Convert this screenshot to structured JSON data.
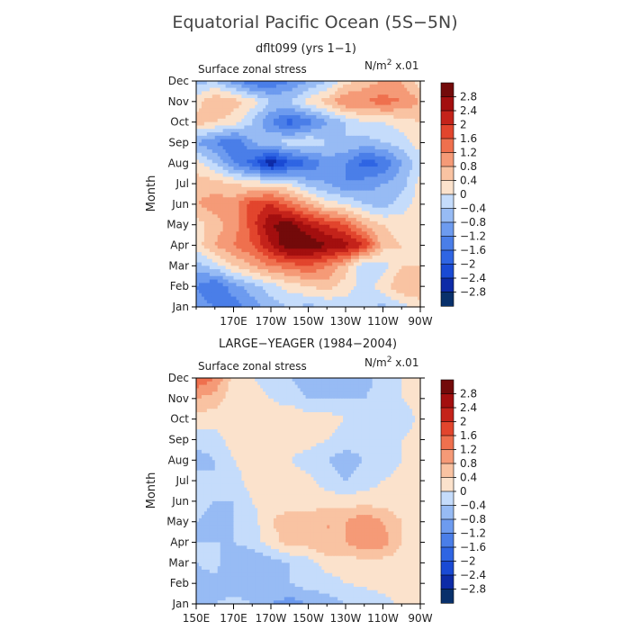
{
  "page": {
    "title": "Equatorial Pacific Ocean (5S−5N)"
  },
  "chart_data": [
    {
      "type": "heatmap",
      "title": "dflt099 (yrs 1−1)",
      "field_label": "Surface zonal stress",
      "units": "N/m² x.01",
      "xlabel": "",
      "ylabel": "Month",
      "x_tick_labels": [
        "170E",
        "170W",
        "150W",
        "130W",
        "110W",
        "90W"
      ],
      "y_tick_labels": [
        "Jan",
        "Feb",
        "Mar",
        "Apr",
        "May",
        "Jun",
        "Jul",
        "Aug",
        "Sep",
        "Oct",
        "Nov",
        "Dec"
      ],
      "x_range": [
        "150E",
        "90W"
      ],
      "y_range": [
        "Jan",
        "Dec"
      ],
      "longitudes": [
        150,
        160,
        170,
        180,
        190,
        200,
        210,
        220,
        230,
        240,
        250,
        260,
        270
      ],
      "months": [
        "Jan",
        "Feb",
        "Mar",
        "Apr",
        "May",
        "Jun",
        "Jul",
        "Aug",
        "Sep",
        "Oct",
        "Nov",
        "Dec"
      ],
      "values": [
        [
          -1.0,
          -1.2,
          -1.4,
          -1.0,
          -0.6,
          -0.4,
          -0.5,
          -0.4,
          -0.2,
          -0.3,
          -0.5,
          -0.2,
          0.2
        ],
        [
          -1.2,
          -1.6,
          -1.0,
          -0.6,
          -0.2,
          0.2,
          0.4,
          0.6,
          0.2,
          -0.2,
          0.2,
          0.8,
          0.8
        ],
        [
          -0.6,
          -0.2,
          0.4,
          0.8,
          1.2,
          1.4,
          1.6,
          1.2,
          0.6,
          -0.4,
          -0.2,
          0.4,
          0.4
        ],
        [
          0.2,
          0.8,
          1.2,
          1.6,
          2.4,
          3.2,
          3.2,
          2.8,
          2.6,
          2.0,
          0.6,
          0.4,
          0.3
        ],
        [
          0.2,
          0.6,
          1.0,
          1.8,
          2.8,
          3.0,
          2.4,
          2.0,
          1.6,
          0.8,
          0.4,
          0.2,
          0.2
        ],
        [
          0.8,
          1.0,
          1.0,
          1.8,
          2.0,
          1.4,
          0.8,
          0.2,
          0.0,
          -0.4,
          -0.6,
          -0.2,
          0.2
        ],
        [
          0.6,
          0.6,
          0.4,
          0.2,
          0.2,
          0.0,
          -0.6,
          -0.8,
          -1.2,
          -1.0,
          -0.8,
          -0.6,
          0.2
        ],
        [
          0.2,
          -0.4,
          -1.2,
          -1.8,
          -2.8,
          -2.0,
          -1.6,
          -1.0,
          -1.2,
          -1.8,
          -1.6,
          -0.8,
          -0.2
        ],
        [
          -0.8,
          -1.2,
          -1.6,
          -0.8,
          -0.4,
          -0.2,
          0.0,
          -0.4,
          -0.4,
          -0.6,
          -0.4,
          -0.2,
          0.2
        ],
        [
          0.6,
          0.4,
          0.2,
          -0.4,
          -1.2,
          -1.8,
          -1.4,
          -0.8,
          -0.4,
          0.0,
          0.0,
          0.2,
          0.4
        ],
        [
          0.2,
          0.8,
          0.6,
          0.2,
          -0.4,
          -0.4,
          0.2,
          0.6,
          1.2,
          1.2,
          1.4,
          1.2,
          0.8
        ],
        [
          -0.6,
          -0.4,
          -1.0,
          -1.6,
          -1.6,
          -1.2,
          -0.8,
          -0.4,
          0.2,
          0.6,
          0.8,
          0.8,
          0.2
        ]
      ],
      "levels": [
        -2.8,
        -2.4,
        -2.0,
        -1.6,
        -1.2,
        -0.8,
        -0.4,
        0,
        0.4,
        0.8,
        1.2,
        1.6,
        2.0,
        2.4,
        2.8
      ],
      "colorbar_labels": [
        "2.8",
        "2.4",
        "2",
        "1.6",
        "1.2",
        "0.8",
        "0.4",
        "0",
        "−0.4",
        "−0.8",
        "−1.2",
        "−1.6",
        "−2",
        "−2.4",
        "−2.8"
      ],
      "colors": [
        "#08306b",
        "#0d2ba7",
        "#1a4ad4",
        "#2f65e3",
        "#4a7ee8",
        "#6d9bef",
        "#97bbf4",
        "#c5dcfb",
        "#fbe2cc",
        "#f9c3a2",
        "#f59a77",
        "#ef704e",
        "#e2452d",
        "#c4231a",
        "#a30f0f",
        "#730a0a"
      ]
    },
    {
      "type": "heatmap",
      "title": "LARGE−YEAGER (1984−2004)",
      "field_label": "Surface zonal stress",
      "units": "N/m² x.01",
      "xlabel": "",
      "ylabel": "Month",
      "x_tick_labels": [
        "150E",
        "170E",
        "170W",
        "150W",
        "130W",
        "110W",
        "90W"
      ],
      "y_tick_labels": [
        "Jan",
        "Feb",
        "Mar",
        "Apr",
        "May",
        "Jun",
        "Jul",
        "Aug",
        "Sep",
        "Oct",
        "Nov",
        "Dec"
      ],
      "x_range": [
        "150E",
        "90W"
      ],
      "y_range": [
        "Jan",
        "Dec"
      ],
      "longitudes": [
        150,
        160,
        170,
        180,
        190,
        200,
        210,
        220,
        230,
        240,
        250,
        260,
        270
      ],
      "months": [
        "Jan",
        "Feb",
        "Mar",
        "Apr",
        "May",
        "Jun",
        "Jul",
        "Aug",
        "Sep",
        "Oct",
        "Nov",
        "Dec"
      ],
      "values": [
        [
          -0.6,
          -0.4,
          -0.2,
          -0.4,
          -0.8,
          -1.0,
          -0.8,
          -0.6,
          -0.4,
          -0.4,
          -0.2,
          0.1,
          0.2
        ],
        [
          -0.6,
          -0.6,
          -0.8,
          -0.6,
          -0.4,
          -0.4,
          -0.2,
          -0.2,
          0.0,
          0.1,
          0.2,
          0.2,
          0.2
        ],
        [
          -0.4,
          -0.2,
          -0.8,
          -0.8,
          -0.6,
          -0.4,
          -0.2,
          0.2,
          0.2,
          0.2,
          0.2,
          0.2,
          0.2
        ],
        [
          -0.4,
          -0.4,
          -0.4,
          -0.2,
          0.2,
          0.6,
          0.6,
          0.8,
          0.8,
          1.2,
          1.0,
          0.4,
          0.2
        ],
        [
          -0.4,
          -0.6,
          -0.4,
          -0.2,
          0.4,
          0.6,
          0.6,
          0.8,
          0.8,
          1.2,
          0.8,
          0.4,
          0.2
        ],
        [
          -0.2,
          -0.4,
          -0.4,
          0.0,
          0.2,
          0.2,
          0.2,
          0.2,
          0.2,
          0.2,
          0.2,
          0.1,
          0.1
        ],
        [
          -0.2,
          -0.4,
          -0.2,
          0.2,
          0.2,
          0.2,
          0.1,
          -0.2,
          -0.4,
          -0.2,
          0.0,
          0.1,
          0.1
        ],
        [
          -0.6,
          -0.4,
          0.0,
          0.2,
          0.2,
          0.0,
          -0.2,
          -0.4,
          -0.6,
          -0.4,
          -0.2,
          0.0,
          0.1
        ],
        [
          -0.2,
          -0.2,
          0.2,
          0.2,
          0.2,
          0.2,
          0.2,
          0.0,
          -0.2,
          -0.2,
          -0.2,
          0.0,
          0.1
        ],
        [
          0.2,
          0.2,
          0.2,
          0.2,
          0.2,
          0.4,
          0.2,
          0.2,
          0.0,
          -0.2,
          -0.2,
          -0.2,
          0.1
        ],
        [
          0.8,
          0.6,
          0.2,
          0.2,
          0.0,
          -0.2,
          -0.4,
          -0.4,
          -0.4,
          -0.4,
          -0.2,
          0.0,
          0.1
        ],
        [
          1.6,
          1.2,
          0.2,
          0.0,
          -0.2,
          -0.4,
          -0.6,
          -0.8,
          -0.8,
          -0.6,
          -0.2,
          0.0,
          0.1
        ]
      ],
      "levels": [
        -2.8,
        -2.4,
        -2.0,
        -1.6,
        -1.2,
        -0.8,
        -0.4,
        0,
        0.4,
        0.8,
        1.2,
        1.6,
        2.0,
        2.4,
        2.8
      ],
      "colorbar_labels": [
        "2.8",
        "2.4",
        "2",
        "1.6",
        "1.2",
        "0.8",
        "0.4",
        "0",
        "−0.4",
        "−0.8",
        "−1.2",
        "−1.6",
        "−2",
        "−2.4",
        "−2.8"
      ],
      "colors": [
        "#08306b",
        "#0d2ba7",
        "#1a4ad4",
        "#2f65e3",
        "#4a7ee8",
        "#6d9bef",
        "#97bbf4",
        "#c5dcfb",
        "#fbe2cc",
        "#f9c3a2",
        "#f59a77",
        "#ef704e",
        "#e2452d",
        "#c4231a",
        "#a30f0f",
        "#730a0a"
      ]
    }
  ]
}
